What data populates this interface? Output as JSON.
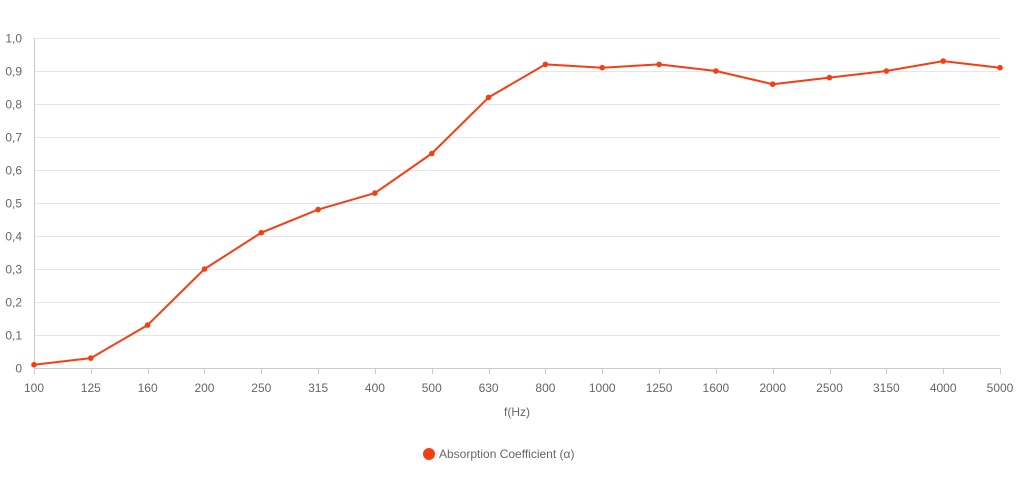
{
  "chart_data": {
    "type": "line",
    "title": "",
    "xlabel": "f(Hz)",
    "ylabel": "",
    "categories": [
      "100",
      "125",
      "160",
      "200",
      "250",
      "315",
      "400",
      "500",
      "630",
      "800",
      "1000",
      "1250",
      "1600",
      "2000",
      "2500",
      "3150",
      "4000",
      "5000"
    ],
    "y_ticks": [
      "0",
      "0,1",
      "0,2",
      "0,3",
      "0,4",
      "0,5",
      "0,6",
      "0,7",
      "0,8",
      "0,9",
      "1,0"
    ],
    "ylim": [
      0,
      1.0
    ],
    "grid": true,
    "legend_position": "bottom-center",
    "series": [
      {
        "name": "Absorption Coefficient (α)",
        "color": "#f53e14",
        "values": [
          0.01,
          0.03,
          0.13,
          0.3,
          0.41,
          0.48,
          0.53,
          0.65,
          0.82,
          0.92,
          0.91,
          0.92,
          0.9,
          0.86,
          0.88,
          0.9,
          0.93,
          0.91
        ]
      }
    ]
  }
}
